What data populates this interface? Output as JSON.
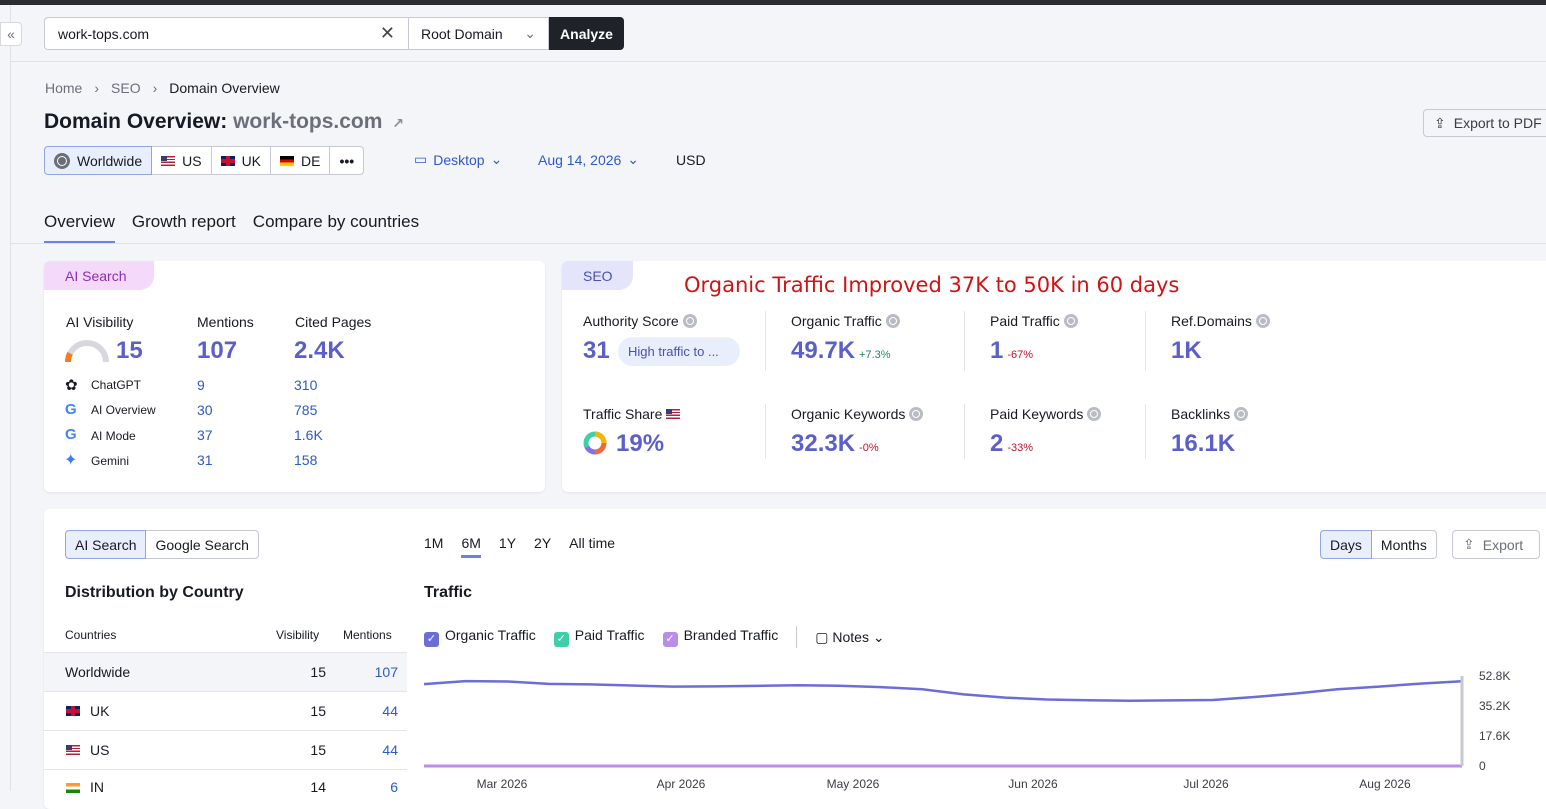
{
  "search": {
    "domain": "work-tops.com",
    "scope": "Root Domain",
    "analyze_label": "Analyze"
  },
  "breadcrumb": [
    "Home",
    "SEO",
    "Domain Overview"
  ],
  "title": {
    "prefix": "Domain Overview:",
    "domain": "work-tops.com"
  },
  "export_pdf_label": "Export to PDF",
  "regions": [
    "Worldwide",
    "US",
    "UK",
    "DE",
    "•••"
  ],
  "device": "Desktop",
  "date": "Aug 14, 2026",
  "currency": "USD",
  "tabs": [
    "Overview",
    "Growth report",
    "Compare by countries"
  ],
  "ai_card": {
    "pill": "AI Search",
    "visibility_label": "AI Visibility",
    "visibility": "15",
    "mentions_label": "Mentions",
    "mentions": "107",
    "cited_label": "Cited Pages",
    "cited": "2.4K",
    "visibility_gauge_fraction": 0.15,
    "rows": [
      {
        "name": "ChatGPT",
        "mentions": "9",
        "cited": "310"
      },
      {
        "name": "AI Overview",
        "mentions": "30",
        "cited": "785"
      },
      {
        "name": "AI Mode",
        "mentions": "37",
        "cited": "1.6K"
      },
      {
        "name": "Gemini",
        "mentions": "31",
        "cited": "158"
      }
    ]
  },
  "seo_card": {
    "pill": "SEO",
    "annotation": "Organic Traffic Improved 37K to 50K in 60 days",
    "authority_label": "Authority Score",
    "authority": "31",
    "authority_chip": "High traffic to ...",
    "organic_label": "Organic Traffic",
    "organic": "49.7K",
    "organic_delta": "+7.3%",
    "paid_label": "Paid Traffic",
    "paid": "1",
    "paid_delta": "-67%",
    "ref_label": "Ref.Domains",
    "ref": "1K",
    "share_label": "Traffic Share",
    "share": "19%",
    "okw_label": "Organic Keywords",
    "okw": "32.3K",
    "okw_delta": "-0%",
    "pkw_label": "Paid Keywords",
    "pkw": "2",
    "pkw_delta": "-33%",
    "backlinks_label": "Backlinks",
    "backlinks": "16.1K"
  },
  "bottom": {
    "source_toggle": [
      "AI Search",
      "Google Search"
    ],
    "periods": [
      "1M",
      "6M",
      "1Y",
      "2Y",
      "All time"
    ],
    "granularity": [
      "Days",
      "Months"
    ],
    "export_label": "Export",
    "distribution_title": "Distribution by Country",
    "columns": [
      "Countries",
      "Visibility",
      "Mentions"
    ],
    "countries": [
      {
        "name": "Worldwide",
        "visibility": "15",
        "mentions": "107"
      },
      {
        "name": "UK",
        "visibility": "15",
        "mentions": "44"
      },
      {
        "name": "US",
        "visibility": "15",
        "mentions": "44"
      },
      {
        "name": "IN",
        "visibility": "14",
        "mentions": "6"
      }
    ],
    "traffic_title": "Traffic",
    "legend": [
      "Organic Traffic",
      "Paid Traffic",
      "Branded Traffic"
    ],
    "notes_label": "Notes"
  },
  "colors": {
    "accent": "#5b5fc7",
    "organic": "#6b6ed6",
    "paid": "#3ecfa8",
    "branded": "#b98ee8",
    "annotation": "#d01414"
  },
  "chart_data": {
    "type": "line",
    "x_tick_labels": [
      "Mar 2026",
      "Apr 2026",
      "May 2026",
      "Jun 2026",
      "Jul 2026",
      "Aug 2026"
    ],
    "y_tick_labels": [
      "52.8K",
      "35.2K",
      "17.6K",
      "0"
    ],
    "ylim": [
      0,
      52800
    ],
    "series": [
      {
        "name": "Organic Traffic",
        "values": [
          48000,
          49800,
          49600,
          48200,
          47900,
          47200,
          46600,
          46700,
          47000,
          47400,
          47100,
          46300,
          45000,
          42000,
          40100,
          39000,
          38600,
          38300,
          38500,
          38700,
          40500,
          42500,
          45000,
          46600,
          48300,
          49700
        ]
      },
      {
        "name": "Paid Traffic",
        "values": [
          0,
          0,
          0,
          0,
          0,
          0,
          0,
          0,
          0,
          0,
          0,
          0,
          0,
          0,
          0,
          0,
          0,
          0,
          0,
          0,
          0,
          0,
          0,
          0,
          0,
          0
        ]
      }
    ]
  }
}
